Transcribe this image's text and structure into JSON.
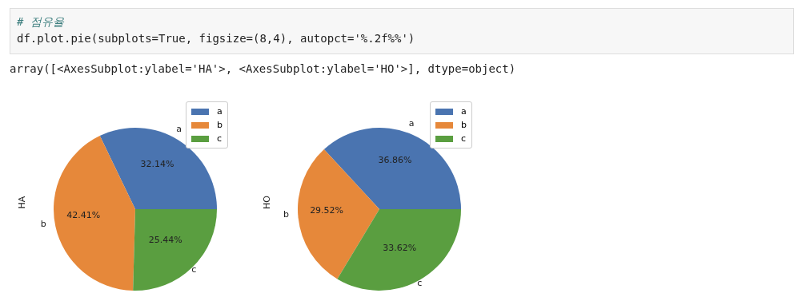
{
  "chart_data": [
    {
      "type": "pie",
      "ylabel": "HA",
      "categories": [
        "a",
        "b",
        "c"
      ],
      "values": [
        32.14,
        42.41,
        25.44
      ],
      "value_labels": [
        "32.14%",
        "42.41%",
        "25.44%"
      ],
      "colors": [
        "#4a74b0",
        "#e6883a",
        "#5a9e40"
      ],
      "legend": "top right",
      "annotations": [
        "# 점유율",
        "df.plot.pie(subplots=True, figsize=(8,4), autopct='%.2f%%')",
        "array([<AxesSubplot:ylabel='HA'>, <AxesSubplot:ylabel='HO'>], dtype=object)"
      ]
    },
    {
      "type": "pie",
      "ylabel": "HO",
      "categories": [
        "a",
        "b",
        "c"
      ],
      "values": [
        36.86,
        29.52,
        33.62
      ],
      "value_labels": [
        "36.86%",
        "29.52%",
        "33.62%"
      ],
      "colors": [
        "#4a74b0",
        "#e6883a",
        "#5a9e40"
      ],
      "legend": "top right"
    }
  ]
}
